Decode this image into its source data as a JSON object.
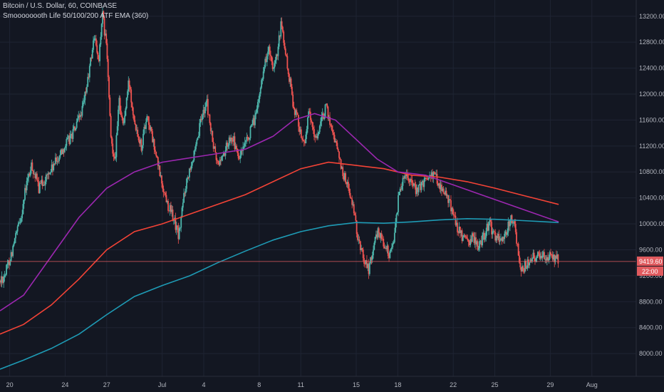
{
  "legend": {
    "line1": "Bitcoin / U.S. Dollar, 60, COINBASE",
    "line2": "Smoooooooth Life 50/100/200 ATF EMA (360)"
  },
  "price_label": {
    "price": "9419.60",
    "countdown": "22:00",
    "color": "#e05a5e"
  },
  "colors": {
    "background": "#131722",
    "grid": "#1f2433",
    "candle_up": "#4db6ac",
    "candle_down": "#ef5350",
    "ema_short": "#9c27b0",
    "ema_mid": "#f44336",
    "ema_long": "#1e9bb5",
    "price_line": "#e05a5e"
  },
  "chart_data": {
    "type": "candlestick",
    "title": "Bitcoin / U.S. Dollar, 60, COINBASE",
    "y_ticks": [
      8000,
      8400,
      8800,
      9200,
      9600,
      10000,
      10400,
      10800,
      11200,
      11600,
      12000,
      12400,
      12800,
      13200
    ],
    "y_tick_labels": [
      "8000.00",
      "8400.00",
      "8800.00",
      "9200.00",
      "9600.00",
      "10000.00",
      "10400.00",
      "10800.00",
      "11200.00",
      "11600.00",
      "12000.00",
      "12400.00",
      "12800.00",
      "13200.00"
    ],
    "ylim": [
      7650,
      13450
    ],
    "x_ticks": [
      {
        "day": 20,
        "label": "20"
      },
      {
        "day": 24,
        "label": "24"
      },
      {
        "day": 27,
        "label": "27"
      },
      {
        "day": 31,
        "label": "Jul"
      },
      {
        "day": 34,
        "label": "4"
      },
      {
        "day": 38,
        "label": "8"
      },
      {
        "day": 41,
        "label": "11"
      },
      {
        "day": 45,
        "label": "15"
      },
      {
        "day": 48,
        "label": "18"
      },
      {
        "day": 52,
        "label": "22"
      },
      {
        "day": 55,
        "label": "25"
      },
      {
        "day": 59,
        "label": "29"
      },
      {
        "day": 62,
        "label": "Aug"
      }
    ],
    "x_axis_note": "x values are days counted from June 1 (June 20 = 20, July 1 = 31)",
    "xlim": [
      19.3,
      65.2
    ],
    "price_anchors": [
      [
        19.3,
        9100
      ],
      [
        19.7,
        9250
      ],
      [
        20.2,
        9600
      ],
      [
        20.8,
        10100
      ],
      [
        21.2,
        10600
      ],
      [
        21.6,
        10900
      ],
      [
        22.1,
        10550
      ],
      [
        22.6,
        10700
      ],
      [
        23.2,
        10900
      ],
      [
        23.8,
        11150
      ],
      [
        24.3,
        11300
      ],
      [
        24.8,
        11500
      ],
      [
        25.3,
        11800
      ],
      [
        25.7,
        12300
      ],
      [
        26.1,
        12900
      ],
      [
        26.4,
        12500
      ],
      [
        26.7,
        13200
      ],
      [
        27.0,
        12700
      ],
      [
        27.3,
        11300
      ],
      [
        27.6,
        11000
      ],
      [
        27.9,
        11900
      ],
      [
        28.2,
        11500
      ],
      [
        28.6,
        12200
      ],
      [
        29.0,
        11600
      ],
      [
        29.5,
        11200
      ],
      [
        29.9,
        11700
      ],
      [
        30.3,
        11300
      ],
      [
        30.7,
        10900
      ],
      [
        31.0,
        10600
      ],
      [
        31.4,
        10300
      ],
      [
        31.8,
        10100
      ],
      [
        32.2,
        9800
      ],
      [
        32.6,
        10500
      ],
      [
        33.0,
        10900
      ],
      [
        33.4,
        11100
      ],
      [
        33.8,
        11600
      ],
      [
        34.2,
        11900
      ],
      [
        34.6,
        11300
      ],
      [
        35.0,
        10900
      ],
      [
        35.5,
        11100
      ],
      [
        36.0,
        11400
      ],
      [
        36.5,
        11000
      ],
      [
        37.0,
        11200
      ],
      [
        37.5,
        11500
      ],
      [
        37.9,
        11800
      ],
      [
        38.3,
        12400
      ],
      [
        38.7,
        12700
      ],
      [
        39.0,
        12300
      ],
      [
        39.3,
        12600
      ],
      [
        39.6,
        13100
      ],
      [
        39.9,
        12600
      ],
      [
        40.2,
        12200
      ],
      [
        40.5,
        11800
      ],
      [
        40.8,
        11600
      ],
      [
        41.2,
        11200
      ],
      [
        41.6,
        11700
      ],
      [
        42.0,
        11300
      ],
      [
        42.4,
        11500
      ],
      [
        42.8,
        11800
      ],
      [
        43.2,
        11500
      ],
      [
        43.6,
        11200
      ],
      [
        44.0,
        10800
      ],
      [
        44.4,
        10600
      ],
      [
        44.8,
        10200
      ],
      [
        45.1,
        9800
      ],
      [
        45.5,
        9500
      ],
      [
        45.9,
        9300
      ],
      [
        46.2,
        9600
      ],
      [
        46.6,
        9900
      ],
      [
        47.0,
        9700
      ],
      [
        47.4,
        9500
      ],
      [
        47.8,
        9900
      ],
      [
        48.1,
        10500
      ],
      [
        48.5,
        10800
      ],
      [
        48.9,
        10700
      ],
      [
        49.3,
        10500
      ],
      [
        49.8,
        10600
      ],
      [
        50.3,
        10800
      ],
      [
        50.8,
        10700
      ],
      [
        51.3,
        10500
      ],
      [
        51.8,
        10300
      ],
      [
        52.2,
        10000
      ],
      [
        52.6,
        9800
      ],
      [
        53.0,
        9700
      ],
      [
        53.4,
        9800
      ],
      [
        53.8,
        9650
      ],
      [
        54.2,
        9800
      ],
      [
        54.6,
        10000
      ],
      [
        55.0,
        9800
      ],
      [
        55.4,
        9750
      ],
      [
        55.8,
        9850
      ],
      [
        56.2,
        10100
      ],
      [
        56.5,
        9900
      ],
      [
        56.8,
        9300
      ],
      [
        57.2,
        9350
      ],
      [
        57.6,
        9450
      ],
      [
        58.0,
        9500
      ],
      [
        58.4,
        9550
      ],
      [
        58.8,
        9500
      ],
      [
        59.2,
        9450
      ],
      [
        59.6,
        9450
      ]
    ],
    "ema_short": {
      "name": "EMA 50",
      "points": [
        [
          19.3,
          8660
        ],
        [
          21.0,
          8900
        ],
        [
          23.0,
          9500
        ],
        [
          25.0,
          10100
        ],
        [
          27.0,
          10550
        ],
        [
          29.0,
          10800
        ],
        [
          31.0,
          10950
        ],
        [
          34.0,
          11050
        ],
        [
          37.0,
          11150
        ],
        [
          39.0,
          11350
        ],
        [
          40.5,
          11600
        ],
        [
          42.0,
          11700
        ],
        [
          43.5,
          11600
        ],
        [
          45.0,
          11300
        ],
        [
          46.5,
          11000
        ],
        [
          48.0,
          10800
        ],
        [
          50.0,
          10750
        ],
        [
          52.0,
          10600
        ],
        [
          54.0,
          10450
        ],
        [
          56.0,
          10300
        ],
        [
          58.0,
          10150
        ],
        [
          59.6,
          10030
        ]
      ]
    },
    "ema_mid": {
      "name": "EMA 100",
      "points": [
        [
          19.3,
          8300
        ],
        [
          21.0,
          8450
        ],
        [
          23.0,
          8750
        ],
        [
          25.0,
          9150
        ],
        [
          27.0,
          9600
        ],
        [
          29.0,
          9880
        ],
        [
          31.0,
          10000
        ],
        [
          33.0,
          10150
        ],
        [
          35.0,
          10300
        ],
        [
          37.0,
          10450
        ],
        [
          39.0,
          10650
        ],
        [
          41.0,
          10850
        ],
        [
          43.0,
          10950
        ],
        [
          45.0,
          10900
        ],
        [
          47.0,
          10850
        ],
        [
          49.0,
          10750
        ],
        [
          51.0,
          10720
        ],
        [
          53.0,
          10650
        ],
        [
          55.0,
          10550
        ],
        [
          57.0,
          10440
        ],
        [
          59.6,
          10300
        ]
      ]
    },
    "ema_long": {
      "name": "EMA 200",
      "points": [
        [
          19.3,
          7760
        ],
        [
          21.0,
          7900
        ],
        [
          23.0,
          8080
        ],
        [
          25.0,
          8300
        ],
        [
          27.0,
          8600
        ],
        [
          29.0,
          8880
        ],
        [
          31.0,
          9050
        ],
        [
          33.0,
          9200
        ],
        [
          35.0,
          9400
        ],
        [
          37.0,
          9580
        ],
        [
          39.0,
          9750
        ],
        [
          41.0,
          9880
        ],
        [
          43.0,
          9970
        ],
        [
          45.0,
          10020
        ],
        [
          47.0,
          10010
        ],
        [
          49.0,
          10030
        ],
        [
          51.0,
          10060
        ],
        [
          53.0,
          10080
        ],
        [
          55.0,
          10070
        ],
        [
          57.0,
          10050
        ],
        [
          59.6,
          10020
        ]
      ]
    },
    "last_price": 9419.6,
    "grid": true
  }
}
